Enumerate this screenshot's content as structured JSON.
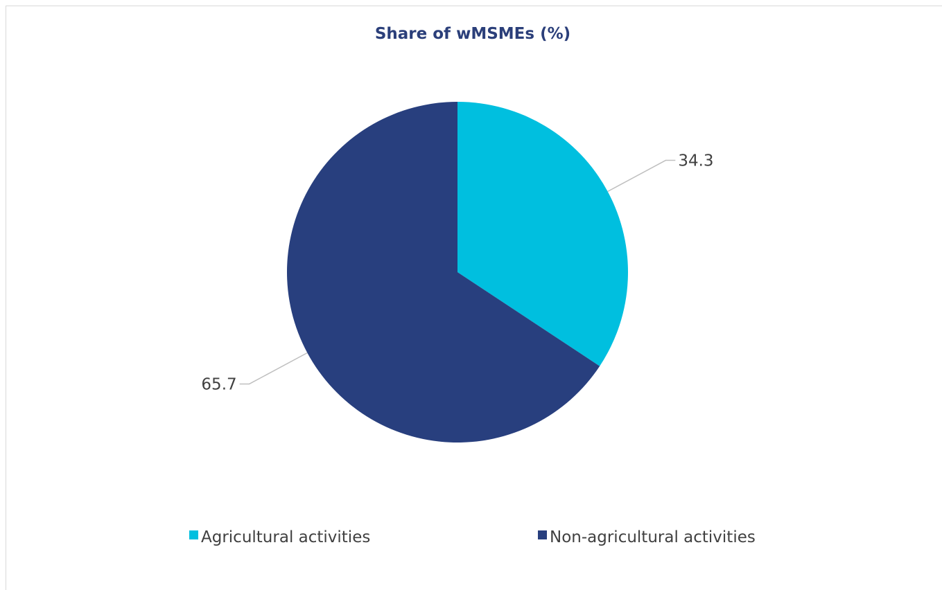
{
  "chart_data": {
    "type": "pie",
    "title": "Share of wMSMEs (%)",
    "categories": [
      "Agricultural activities",
      "Non-agricultural activities"
    ],
    "values": [
      34.3,
      65.7
    ],
    "data_labels": [
      "34.3",
      "65.7"
    ],
    "colors": [
      "#00bfdf",
      "#283f7e"
    ],
    "start_angle_deg": 0,
    "direction": "clockwise",
    "legend_position": "bottom",
    "leader_line_color": "#bfbfbf"
  }
}
